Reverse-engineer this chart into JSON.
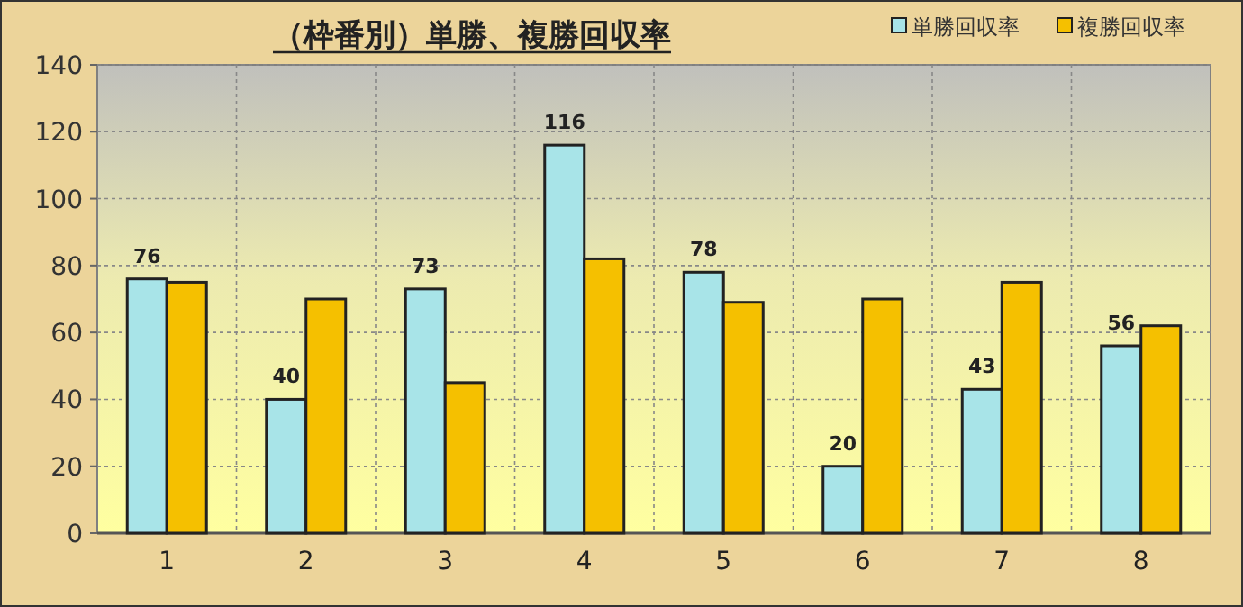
{
  "chart_data": {
    "type": "bar",
    "title": "（枠番別）単勝、複勝回収率",
    "categories": [
      "1",
      "2",
      "3",
      "4",
      "5",
      "6",
      "7",
      "8"
    ],
    "series": [
      {
        "name": "単勝回収率",
        "color": "#a8e4e8",
        "values": [
          76,
          40,
          73,
          116,
          78,
          20,
          43,
          56
        ],
        "value_labels": [
          "76",
          "40",
          "73",
          "116",
          "78",
          "20",
          "43",
          "56"
        ]
      },
      {
        "name": "複勝回収率",
        "color": "#f5c000",
        "values": [
          75,
          70,
          45,
          82,
          69,
          70,
          75,
          62
        ]
      }
    ],
    "ylim": [
      0,
      140
    ],
    "yticks": [
      0,
      20,
      40,
      60,
      80,
      100,
      120,
      140
    ],
    "grid": true,
    "legend": "top right"
  }
}
